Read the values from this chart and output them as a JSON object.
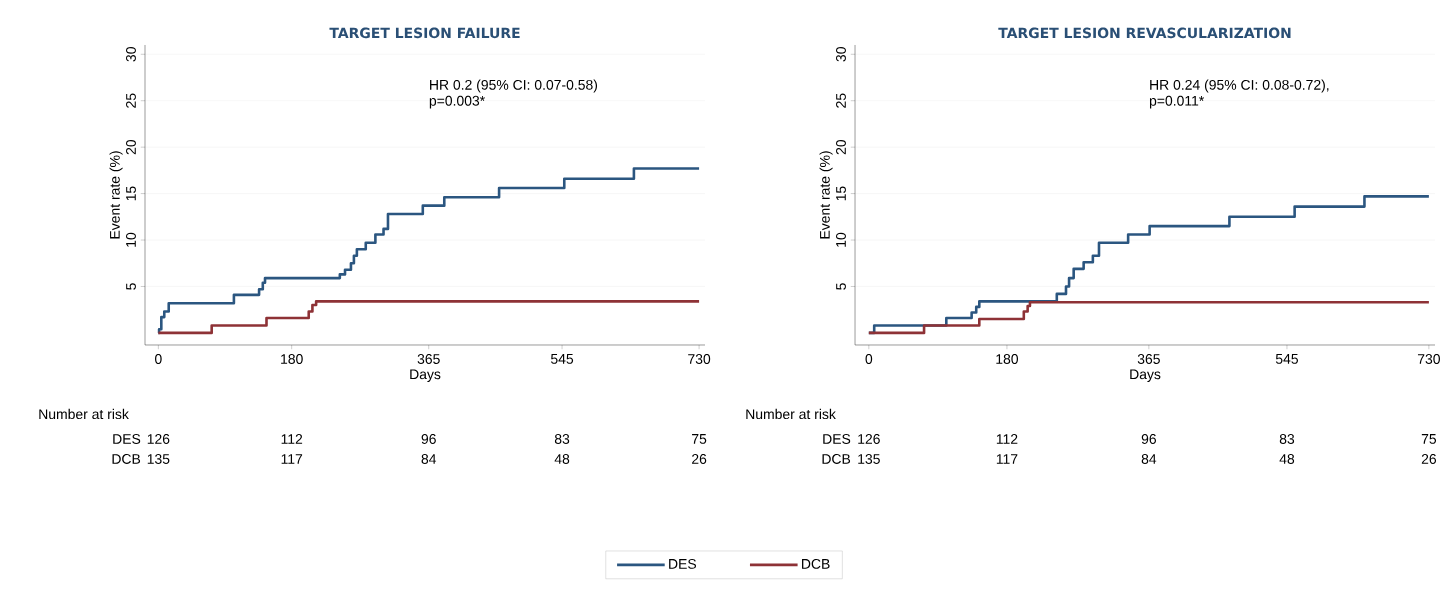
{
  "chart_data": [
    {
      "type": "step",
      "title": "TARGET LESION FAILURE",
      "xlabel": "Days",
      "ylabel": "Event rate (%)",
      "xlim": [
        -18,
        738
      ],
      "xticks": [
        0,
        180,
        365,
        545,
        730
      ],
      "ylim": [
        -1.3,
        31
      ],
      "yticks": [
        5,
        10,
        15,
        20,
        25,
        30
      ],
      "grid": "y",
      "legend": "bottom",
      "line_style": "solid",
      "marker": "none",
      "series": [
        {
          "name": "DES",
          "color": "#2b5680",
          "x": [
            0,
            1,
            4,
            8,
            14,
            102,
            136,
            141,
            144,
            245,
            252,
            260,
            264,
            268,
            280,
            293,
            304,
            310,
            357,
            386,
            460,
            548,
            642,
            730
          ],
          "values": [
            0,
            0.4,
            1.7,
            2.3,
            3.2,
            4.1,
            4.7,
            5.4,
            5.9,
            6.3,
            6.8,
            7.5,
            8.3,
            9.0,
            9.7,
            10.6,
            11.2,
            12.8,
            13.7,
            14.6,
            15.6,
            16.6,
            17.7,
            17.7
          ]
        },
        {
          "name": "DCB",
          "color": "#8e3236",
          "x": [
            0,
            72,
            146,
            203,
            208,
            213,
            730
          ],
          "values": [
            0,
            0.8,
            1.6,
            2.3,
            3.0,
            3.4,
            3.4
          ]
        }
      ],
      "annotations": [
        "HR 0.2 (95% CI: 0.07-0.58)",
        "p=0.003*",
        "Number at risk",
        "DES",
        "126",
        "112",
        "96",
        "83",
        "75",
        "DCB",
        "135",
        "117",
        "84",
        "48",
        "26"
      ]
    },
    {
      "type": "step",
      "title": "TARGET LESION REVASCULARIZATION",
      "xlabel": "Days",
      "ylabel": "Event rate (%)",
      "xlim": [
        -18,
        738
      ],
      "xticks": [
        0,
        180,
        365,
        545,
        730
      ],
      "ylim": [
        -1.3,
        31
      ],
      "yticks": [
        5,
        10,
        15,
        20,
        25,
        30
      ],
      "grid": "y",
      "line_style": "solid",
      "marker": "none",
      "series": [
        {
          "color": "#2b5680",
          "x": [
            0,
            7,
            101,
            134,
            140,
            144,
            245,
            257,
            261,
            267,
            280,
            292,
            300,
            338,
            366,
            470,
            555,
            646,
            730
          ],
          "values": [
            0,
            0.8,
            1.6,
            2.2,
            2.8,
            3.4,
            4.2,
            5.0,
            5.9,
            6.9,
            7.6,
            8.3,
            9.7,
            10.6,
            11.5,
            12.5,
            13.6,
            14.7,
            14.7
          ]
        },
        {
          "color": "#8e3236",
          "x": [
            0,
            72,
            144,
            202,
            207,
            210,
            730
          ],
          "values": [
            0,
            0.8,
            1.5,
            2.3,
            2.9,
            3.3,
            3.3
          ]
        }
      ],
      "annotations": [
        "HR 0.24 (95% CI: 0.08-0.72),",
        "p=0.011*",
        "Number at risk",
        "DES",
        "126",
        "112",
        "96",
        "83",
        "75",
        "DCB",
        "135",
        "117",
        "84",
        "48",
        "26"
      ]
    }
  ]
}
